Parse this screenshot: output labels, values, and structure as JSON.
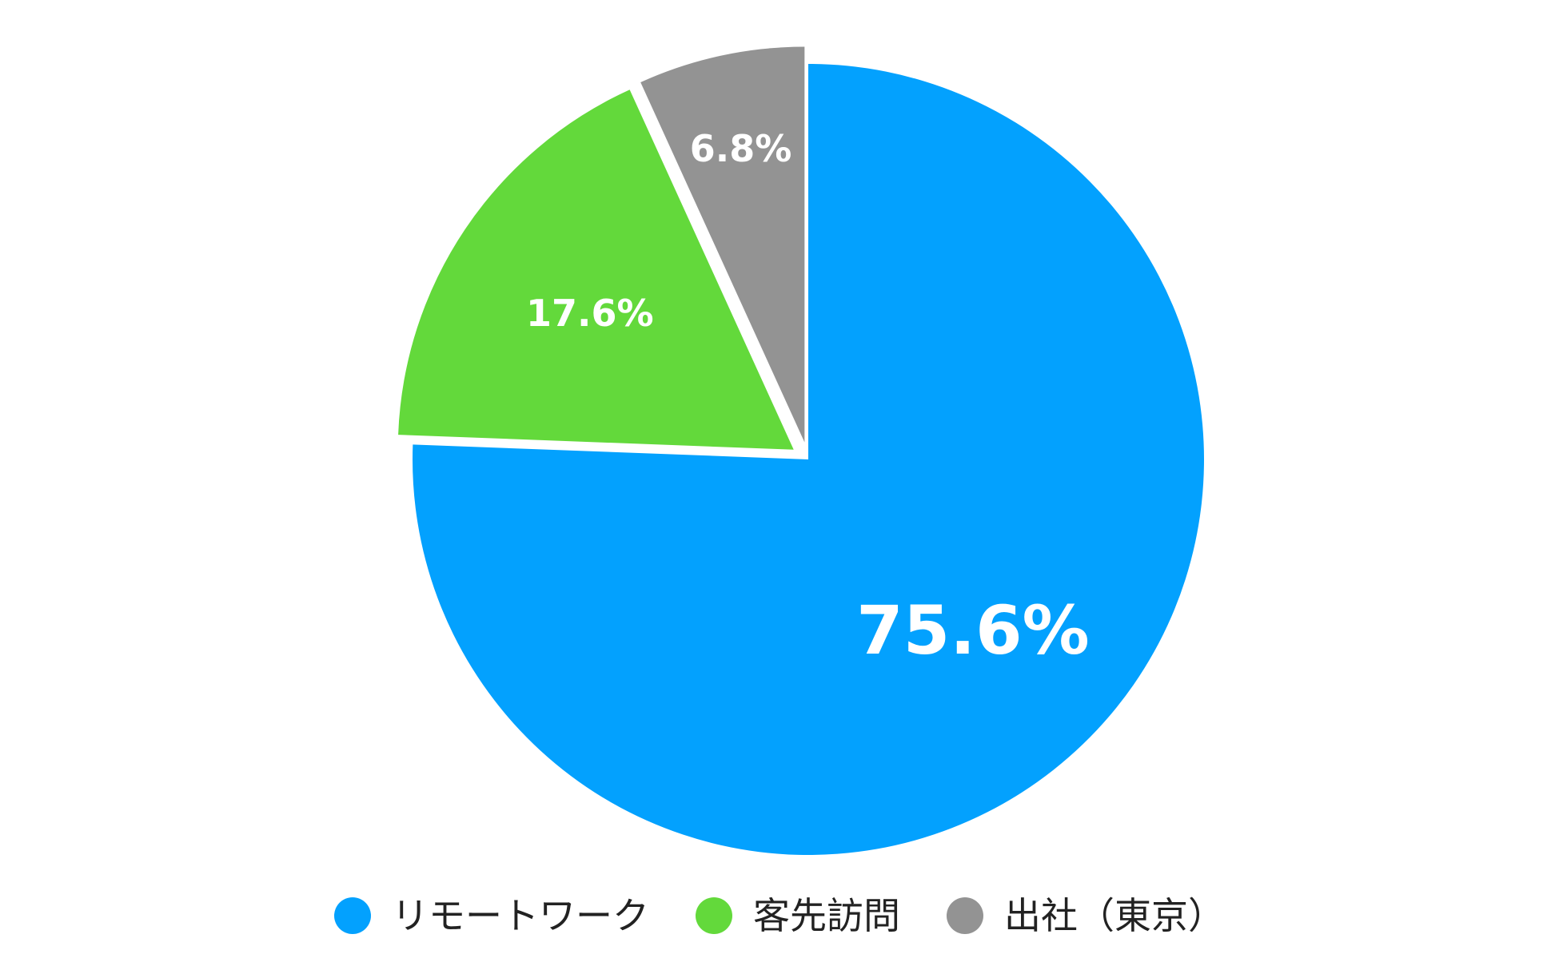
{
  "chart_data": {
    "type": "pie",
    "title": "",
    "categories": [
      "リモートワーク",
      "客先訪問",
      "出社（東京）"
    ],
    "values": [
      75.6,
      17.6,
      6.8
    ],
    "value_labels": [
      "75.6%",
      "17.6%",
      "6.8%"
    ],
    "colors": [
      "#03a1fe",
      "#63d93b",
      "#939393"
    ],
    "exploded": [
      false,
      true,
      true
    ],
    "start_angle": "12 o'clock, clockwise",
    "legend": {
      "position": "bottom",
      "entries": [
        "リモートワーク",
        "客先訪問",
        "出社（東京）"
      ]
    }
  }
}
